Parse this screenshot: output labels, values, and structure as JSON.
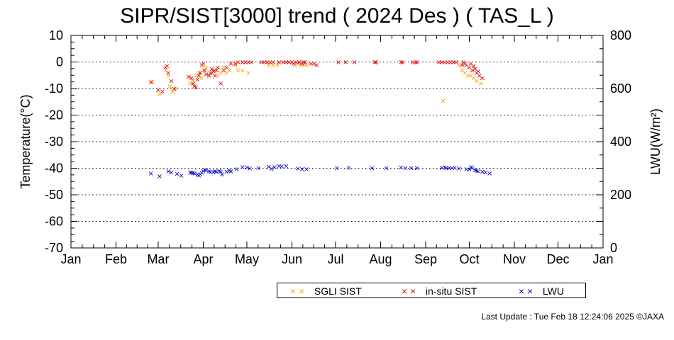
{
  "title": "SIPR/SIST[3000] trend ( 2024 Des ) ( TAS_L )",
  "footer": "Last Update : Tue Feb 18 12:24:06 2025  ©JAXA",
  "colors": {
    "sgli": "#ffa500",
    "insitu": "#e00000",
    "lwu": "#0000d0",
    "grid": "#000000"
  },
  "chart_data": {
    "type": "scatter",
    "xlabel": "",
    "ylabel": "Temperature(°C)",
    "y2label": "LWU(W/m²)",
    "ylim": [
      -70,
      10
    ],
    "y2lim": [
      0,
      800
    ],
    "yticks": [
      "10",
      "0",
      "-10",
      "-20",
      "-30",
      "-40",
      "-50",
      "-60",
      "-70"
    ],
    "y2ticks": [
      "800",
      "600",
      "400",
      "200",
      "0"
    ],
    "x_months": [
      "Jan",
      "Feb",
      "Mar",
      "Apr",
      "May",
      "Jun",
      "Jul",
      "Aug",
      "Sep",
      "Oct",
      "Nov",
      "Dec",
      "Jan"
    ],
    "grid": "horizontal dotted",
    "legend_position": "bottom",
    "series": [
      {
        "name": "SGLI SIST",
        "axis": "left",
        "points": [
          [
            56,
            -7.5
          ],
          [
            61,
            -12
          ],
          [
            65,
            -3
          ],
          [
            67,
            -5
          ],
          [
            68,
            -9
          ],
          [
            70,
            -11
          ],
          [
            72,
            -10
          ],
          [
            82,
            -8
          ],
          [
            84,
            -7
          ],
          [
            86,
            -5
          ],
          [
            88,
            -4
          ],
          [
            90,
            -6
          ],
          [
            91,
            -3
          ],
          [
            93,
            -2
          ],
          [
            95,
            -5
          ],
          [
            97,
            -4
          ],
          [
            99,
            -3
          ],
          [
            101,
            -5
          ],
          [
            103,
            -4
          ],
          [
            105,
            -2
          ],
          [
            107,
            -4
          ],
          [
            109,
            -3
          ],
          [
            113,
            -1
          ],
          [
            115,
            -3
          ],
          [
            118,
            -3
          ],
          [
            122,
            -4
          ],
          [
            136,
            -1
          ],
          [
            139,
            -1
          ],
          [
            142,
            -1
          ],
          [
            154,
            -1
          ],
          [
            156,
            -0.5
          ],
          [
            158,
            -1
          ],
          [
            160,
            -1
          ],
          [
            162,
            -1
          ],
          [
            256,
            -14.5
          ],
          [
            267,
            -1
          ],
          [
            269,
            -3
          ],
          [
            271,
            -4
          ],
          [
            273,
            -5
          ],
          [
            275,
            -5
          ],
          [
            277,
            -6
          ],
          [
            279,
            -7
          ],
          [
            282,
            -8
          ]
        ]
      },
      {
        "name": "in-situ SIST",
        "axis": "left",
        "points": [
          [
            55,
            -7.5
          ],
          [
            60,
            -10.5
          ],
          [
            63,
            -11
          ],
          [
            65,
            -2
          ],
          [
            66,
            -1.5
          ],
          [
            67,
            -4
          ],
          [
            69,
            -7
          ],
          [
            71,
            -10
          ],
          [
            81,
            -5.5
          ],
          [
            83,
            -6
          ],
          [
            84,
            -8
          ],
          [
            85,
            -9
          ],
          [
            86,
            -9.5
          ],
          [
            87,
            -6.5
          ],
          [
            88,
            -5
          ],
          [
            89,
            -4
          ],
          [
            90,
            -1
          ],
          [
            91,
            -0.5
          ],
          [
            92,
            -3
          ],
          [
            93,
            -4.5
          ],
          [
            95,
            -5
          ],
          [
            96,
            -4
          ],
          [
            97,
            -2.5
          ],
          [
            98,
            -3.5
          ],
          [
            99,
            -5
          ],
          [
            100,
            -3
          ],
          [
            101,
            -2
          ],
          [
            103,
            -8
          ],
          [
            105,
            -3
          ],
          [
            107,
            -2
          ],
          [
            110,
            -0.5
          ],
          [
            113,
            -0.5
          ],
          [
            115,
            0
          ],
          [
            118,
            0
          ],
          [
            120,
            0
          ],
          [
            122,
            0
          ],
          [
            124,
            0
          ],
          [
            131,
            0
          ],
          [
            133,
            0
          ],
          [
            135,
            0
          ],
          [
            137,
            0
          ],
          [
            139,
            0
          ],
          [
            143,
            0
          ],
          [
            146,
            0
          ],
          [
            148,
            0
          ],
          [
            150,
            0
          ],
          [
            152,
            0
          ],
          [
            153,
            -0.5
          ],
          [
            155,
            0
          ],
          [
            157,
            0
          ],
          [
            159,
            -0.5
          ],
          [
            160,
            0
          ],
          [
            161,
            0
          ],
          [
            165,
            -0.5
          ],
          [
            167,
            -0.5
          ],
          [
            169,
            -1
          ],
          [
            184,
            0
          ],
          [
            189,
            0
          ],
          [
            195,
            0
          ],
          [
            209,
            0
          ],
          [
            210,
            0
          ],
          [
            227,
            0
          ],
          [
            228,
            0
          ],
          [
            235,
            0
          ],
          [
            237,
            0
          ],
          [
            238,
            0
          ],
          [
            253,
            0
          ],
          [
            255,
            0
          ],
          [
            257,
            0
          ],
          [
            259,
            0
          ],
          [
            261,
            0
          ],
          [
            263,
            0
          ],
          [
            265,
            0
          ],
          [
            269,
            -1
          ],
          [
            270,
            0
          ],
          [
            271,
            -0.5
          ],
          [
            272,
            -1
          ],
          [
            274,
            -2
          ],
          [
            275,
            -0.5
          ],
          [
            276,
            -3
          ],
          [
            277,
            -1.5
          ],
          [
            278,
            -2.5
          ],
          [
            279,
            -4
          ],
          [
            280,
            -3.5
          ],
          [
            281,
            -5
          ],
          [
            283,
            -6
          ]
        ]
      },
      {
        "name": "LWU",
        "axis": "right",
        "points": [
          [
            55,
            282
          ],
          [
            61,
            271
          ],
          [
            67,
            289
          ],
          [
            69,
            285
          ],
          [
            73,
            280
          ],
          [
            76,
            273
          ],
          [
            82,
            285
          ],
          [
            83,
            284
          ],
          [
            84,
            283
          ],
          [
            85,
            282
          ],
          [
            87,
            278
          ],
          [
            88,
            274
          ],
          [
            89,
            279
          ],
          [
            90,
            284
          ],
          [
            91,
            291
          ],
          [
            92,
            295
          ],
          [
            93,
            293
          ],
          [
            95,
            289
          ],
          [
            96,
            287
          ],
          [
            98,
            287
          ],
          [
            99,
            290
          ],
          [
            100,
            288
          ],
          [
            102,
            291
          ],
          [
            103,
            288
          ],
          [
            104,
            278
          ],
          [
            107,
            288
          ],
          [
            109,
            292
          ],
          [
            110,
            290
          ],
          [
            114,
            298
          ],
          [
            118,
            306
          ],
          [
            121,
            304
          ],
          [
            123,
            300
          ],
          [
            129,
            301
          ],
          [
            136,
            307
          ],
          [
            138,
            299
          ],
          [
            140,
            305
          ],
          [
            143,
            310
          ],
          [
            145,
            308
          ],
          [
            148,
            310
          ],
          [
            156,
            300
          ],
          [
            159,
            298
          ],
          [
            162,
            297
          ],
          [
            183,
            302
          ],
          [
            191,
            303
          ],
          [
            207,
            302
          ],
          [
            217,
            301
          ],
          [
            227,
            304
          ],
          [
            230,
            302
          ],
          [
            234,
            301
          ],
          [
            238,
            302
          ],
          [
            255,
            303
          ],
          [
            257,
            304
          ],
          [
            258,
            301
          ],
          [
            260,
            301
          ],
          [
            262,
            302
          ],
          [
            264,
            303
          ],
          [
            267,
            300
          ],
          [
            272,
            298
          ],
          [
            274,
            296
          ],
          [
            275,
            305
          ],
          [
            276,
            301
          ],
          [
            278,
            294
          ],
          [
            279,
            292
          ],
          [
            280,
            290
          ],
          [
            283,
            288
          ],
          [
            285,
            286
          ],
          [
            288,
            281
          ]
        ]
      }
    ]
  }
}
